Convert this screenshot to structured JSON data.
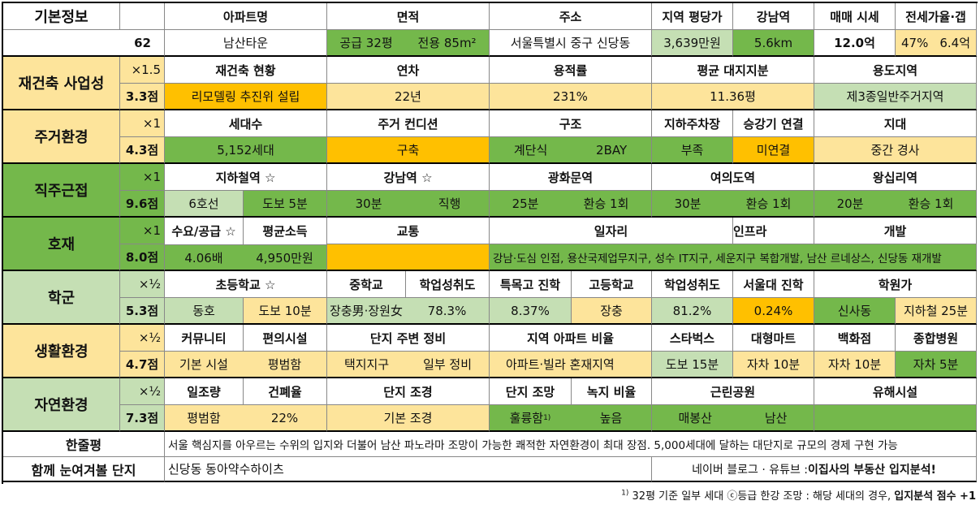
{
  "row_labels": {
    "basic": "기본정보",
    "score_basic": "62",
    "rebuild": "재건축 사업성",
    "living": "주거환경",
    "commute": "직주근접",
    "hojae": "호재",
    "school": "학군",
    "life": "생활환경",
    "nature": "자연환경",
    "summary": "한줄평",
    "together": "함께 눈여겨볼 단지"
  },
  "weights": {
    "rebuild": "×1.5",
    "living": "×1",
    "commute": "×1",
    "hojae": "×1",
    "school": "×½",
    "life": "×½",
    "nature": "×½"
  },
  "scores": {
    "rebuild": "3.3점",
    "living": "4.3점",
    "commute": "9.6점",
    "hojae": "8.0점",
    "school": "5.3점",
    "life": "4.7점",
    "nature": "7.3점"
  },
  "basic": {
    "h_apt": "아파트명",
    "h_area": "면적",
    "h_addr": "주소",
    "h_ppp": "지역 평당가",
    "h_gn": "강남역",
    "h_price": "매매 시세",
    "h_gap": "전세가율·갭",
    "apt": "남산타운",
    "area_supply": "공급 32평",
    "area_exclusive": "전용 85m²",
    "addr": "서울특별시 중구 신당동",
    "ppp": "3,639만원",
    "gn_dist": "5.6km",
    "price": "12.0억",
    "gap_rate": "47%",
    "gap_amt": "6.4억"
  },
  "rebuild": {
    "h1": "재건축 현황",
    "h2": "연차",
    "h3": "용적률",
    "h4": "평균 대지지분",
    "h5": "용도지역",
    "v1": "리모델링 추진위 설립",
    "v2": "22년",
    "v3": "231%",
    "v4": "11.36평",
    "v5": "제3종일반주거지역"
  },
  "living": {
    "h1": "세대수",
    "h2": "주거 컨디션",
    "h3": "구조",
    "h4": "지하주차장",
    "h5": "승강기 연결",
    "h6": "지대",
    "v1": "5,152세대",
    "v2": "구축",
    "v3a": "계단식",
    "v3b": "2BAY",
    "v4": "부족",
    "v5": "미연결",
    "v6": "중간 경사"
  },
  "commute": {
    "h1": "지하철역 ☆",
    "h2": "강남역 ☆",
    "h3": "광화문역",
    "h4": "여의도역",
    "h5": "왕십리역",
    "v1a": "6호선",
    "v1b": "도보 5분",
    "v2a": "30분",
    "v2b": "직행",
    "v3a": "25분",
    "v3b": "환승 1회",
    "v4a": "30분",
    "v4b": "환승 1회",
    "v5a": "20분",
    "v5b": "환승 1회"
  },
  "hojae": {
    "h1": "수요/공급 ☆",
    "h2": "평균소득",
    "h3": "교통",
    "h4": "일자리",
    "h5": "인프라",
    "h6": "개발",
    "v1": "4.06배",
    "v2": "4,950만원",
    "v3": "",
    "v4": "강남·도심 인접, 용산국제업무지구, 성수 IT지구, 세운지구 복합개발, 남산 르네상스, 신당동 재개발"
  },
  "school": {
    "h1": "초등학교 ☆",
    "h2": "중학교",
    "h3": "학업성취도",
    "h4": "특목고 진학",
    "h5": "고등학교",
    "h6": "학업성취도",
    "h7": "서울대 진학",
    "h8": "학원가",
    "v1a": "동호",
    "v1b": "도보 10분",
    "v2": "장충男·장원女",
    "v3": "78.3%",
    "v4": "8.37%",
    "v5": "장충",
    "v6": "81.2%",
    "v7": "0.24%",
    "v8a": "신사동",
    "v8b": "지하철 25분"
  },
  "life": {
    "h1": "커뮤니티",
    "h2": "편의시설",
    "h3": "단지 주변 정비",
    "h4": "지역 아파트 비율",
    "h5": "스타벅스",
    "h6": "대형마트",
    "h7": "백화점",
    "h8": "종합병원",
    "v1": "기본 시설",
    "v2": "평범함",
    "v3a": "택지지구",
    "v3b": "일부 정비",
    "v4": "아파트·빌라 혼재지역",
    "v5": "도보 15분",
    "v6": "자차 10분",
    "v7": "자차 10분",
    "v8": "자차 5분"
  },
  "nature": {
    "h1": "일조량",
    "h2": "건폐율",
    "h3": "단지 조경",
    "h4": "단지 조망",
    "h5": "녹지 비율",
    "h6": "근린공원",
    "h7": "유해시설",
    "v1": "평범함",
    "v2": "22%",
    "v3": "기본 조경",
    "v4": "훌륭함",
    "v4sup": "1)",
    "v5": "높음",
    "v6a": "매봉산",
    "v6b": "남산",
    "v7": ""
  },
  "summary": "서울 핵심지를 아우르는 수위의 입지와 더불어 남산 파노라마 조망이 가능한 쾌적한 자연환경이 최대 장점. 5,000세대에 달하는 대단지로 규모의 경제 구현 가능",
  "together": {
    "value": "신당동 동아약수하이츠",
    "credit_pre": "네이버 블로그 · 유튜브 : ",
    "credit_bold": "이집사의 부동산 입지분석!"
  },
  "footnote": {
    "sup": "1)",
    "text": " 32평 기준 일부 세대 ⓒ등급 한강 조망 : 해당 세대의 경우, ",
    "bold": "입지분석 점수 +1"
  },
  "colors": {
    "green": "#74b84b",
    "light_green": "#c5dfb4",
    "yellow": "#fde49b",
    "orange": "#ffc000"
  }
}
